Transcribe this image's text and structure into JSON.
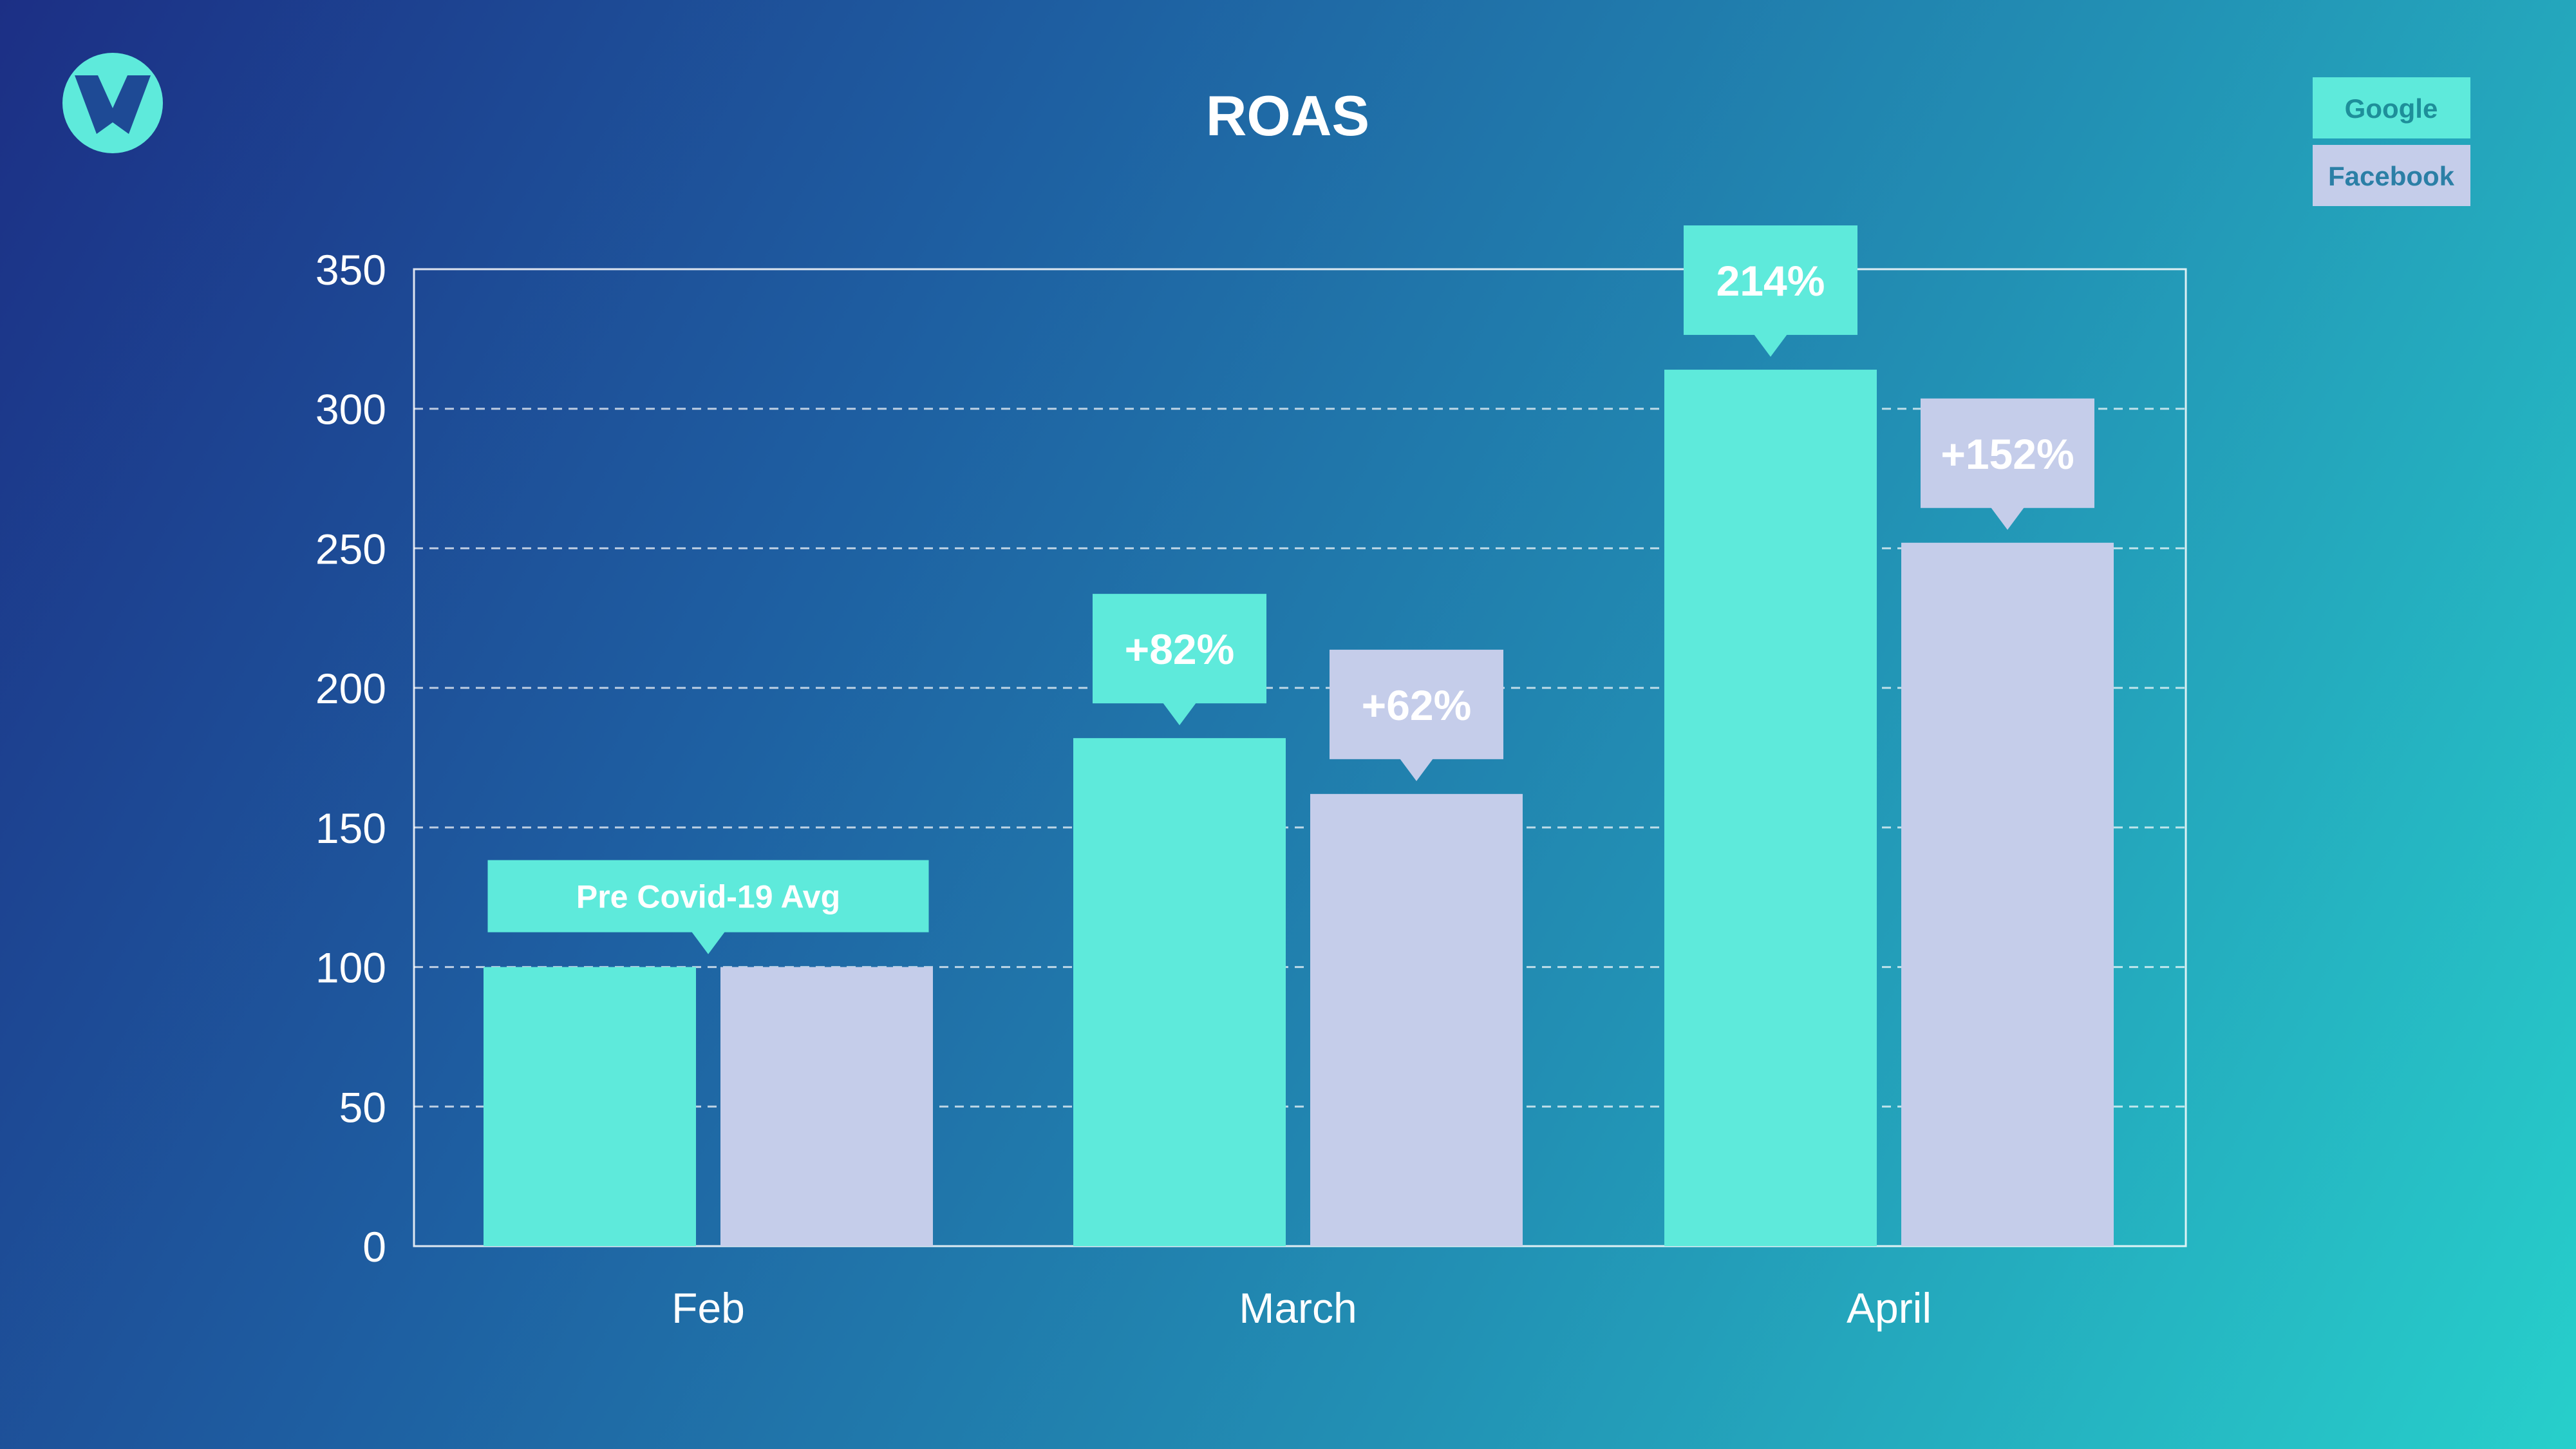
{
  "logo": {
    "icon": "w-logo-icon",
    "letter": "W",
    "color": "#5eeadb"
  },
  "colors": {
    "google": "#5eeadb",
    "facebook": "#c5cdea",
    "google_legend_text": "#1e8f9a",
    "facebook_legend_text": "#2b7fa6",
    "grid": "#ffffff"
  },
  "chart_data": {
    "type": "bar",
    "title": "ROAS",
    "xlabel": "",
    "ylabel": "",
    "categories": [
      "Feb",
      "March",
      "April"
    ],
    "series": [
      {
        "name": "Google",
        "values": [
          100,
          182,
          314
        ]
      },
      {
        "name": "Facebook",
        "values": [
          100,
          162,
          252
        ]
      }
    ],
    "ylim": [
      0,
      350
    ],
    "yticks": [
      0,
      50,
      100,
      150,
      200,
      250,
      300,
      350
    ],
    "grid": true,
    "grid_style": "dashed",
    "legend_position": "top-right",
    "annotations": [
      {
        "category": "Feb",
        "series": "both",
        "text": "Pre Covid-19 Avg"
      },
      {
        "category": "March",
        "series": "Google",
        "text": "+82%"
      },
      {
        "category": "March",
        "series": "Facebook",
        "text": "+62%"
      },
      {
        "category": "April",
        "series": "Google",
        "text": "214%"
      },
      {
        "category": "April",
        "series": "Facebook",
        "text": "+152%"
      }
    ]
  }
}
